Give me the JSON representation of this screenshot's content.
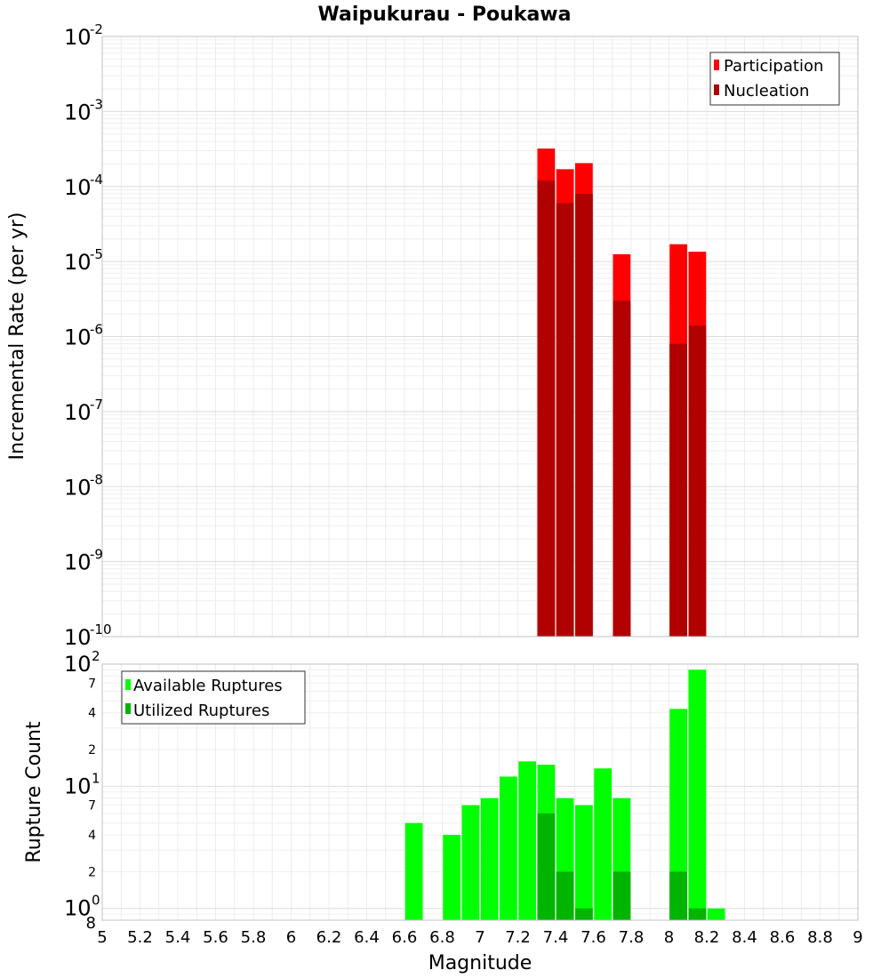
{
  "chart_data": [
    {
      "type": "bar",
      "title": "Waipukurau - Poukawa",
      "xlabel": "",
      "ylabel": "Incremental Rate (per yr)",
      "yscale": "log",
      "xlim": [
        5,
        9
      ],
      "ylim": [
        1e-10,
        0.01
      ],
      "grid": true,
      "legend_position": "top-right",
      "y_ticks": [
        {
          "base": "10",
          "exp": "-2"
        },
        {
          "base": "10",
          "exp": "-3"
        },
        {
          "base": "10",
          "exp": "-4"
        },
        {
          "base": "10",
          "exp": "-5"
        },
        {
          "base": "10",
          "exp": "-6"
        },
        {
          "base": "10",
          "exp": "-7"
        },
        {
          "base": "10",
          "exp": "-8"
        },
        {
          "base": "10",
          "exp": "-9"
        },
        {
          "base": "10",
          "exp": "-10"
        }
      ],
      "series": [
        {
          "name": "Participation",
          "color": "#ff0000",
          "x": [
            7.35,
            7.45,
            7.55,
            7.75,
            8.05,
            8.15
          ],
          "values": [
            0.00032,
            0.00017,
            0.000205,
            1.25e-05,
            1.7e-05,
            1.35e-05
          ]
        },
        {
          "name": "Nucleation",
          "color": "#b00000",
          "x": [
            7.35,
            7.45,
            7.55,
            7.75,
            8.05,
            8.15
          ],
          "values": [
            0.00012,
            6e-05,
            8e-05,
            3e-06,
            8e-07,
            1.4e-06
          ]
        }
      ]
    },
    {
      "type": "bar",
      "xlabel": "Magnitude",
      "ylabel": "Rupture Count",
      "yscale": "log",
      "xlim": [
        5,
        9
      ],
      "ylim": [
        0.8,
        100
      ],
      "grid": true,
      "legend_position": "top-left",
      "x_tick_labels": [
        "5",
        "5.2",
        "5.4",
        "5.6",
        "5.8",
        "6",
        "6.2",
        "6.4",
        "6.6",
        "6.8",
        "7",
        "7.2",
        "7.4",
        "7.6",
        "7.8",
        "8",
        "8.2",
        "8.4",
        "8.6",
        "8.8",
        "9"
      ],
      "y_major_ticks": [
        {
          "base": "10",
          "exp": "2"
        },
        {
          "base": "10",
          "exp": "1"
        },
        {
          "base": "10",
          "exp": "0"
        }
      ],
      "y_minor_labels": [
        "7",
        "4",
        "2",
        "7",
        "4",
        "2",
        "8"
      ],
      "series": [
        {
          "name": "Available Ruptures",
          "color": "#00ff00",
          "x": [
            6.65,
            6.85,
            6.95,
            7.05,
            7.15,
            7.25,
            7.35,
            7.45,
            7.55,
            7.65,
            7.75,
            8.05,
            8.15,
            8.25
          ],
          "values": [
            5,
            4,
            7,
            8,
            12,
            16,
            15,
            8,
            7,
            14,
            8,
            43,
            90,
            1
          ]
        },
        {
          "name": "Utilized Ruptures",
          "color": "#00b400",
          "x": [
            7.35,
            7.45,
            7.55,
            7.75,
            8.05,
            8.15
          ],
          "values": [
            6,
            2,
            1,
            2,
            2,
            1
          ]
        }
      ]
    }
  ]
}
